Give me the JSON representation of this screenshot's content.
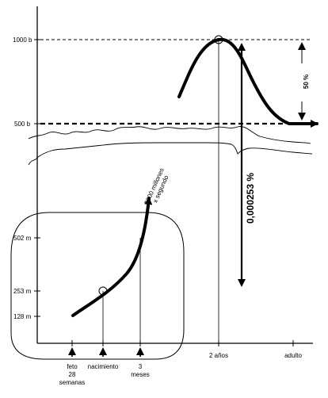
{
  "y_labels": [
    "1000 b",
    "500 b",
    "502 m",
    "253 m",
    "128 m"
  ],
  "x_labels": {
    "feto": [
      "feto",
      "28",
      "semanas"
    ],
    "nacimiento": "nacimiento",
    "tres_meses": [
      "3",
      "meses"
    ],
    "dos_anos": "2 años",
    "adulto": "adulto"
  },
  "annotations": {
    "rate": [
      "5000 millones",
      "x segundo"
    ],
    "percent_left": "0,000253 %",
    "percent_right": "50 %"
  }
}
